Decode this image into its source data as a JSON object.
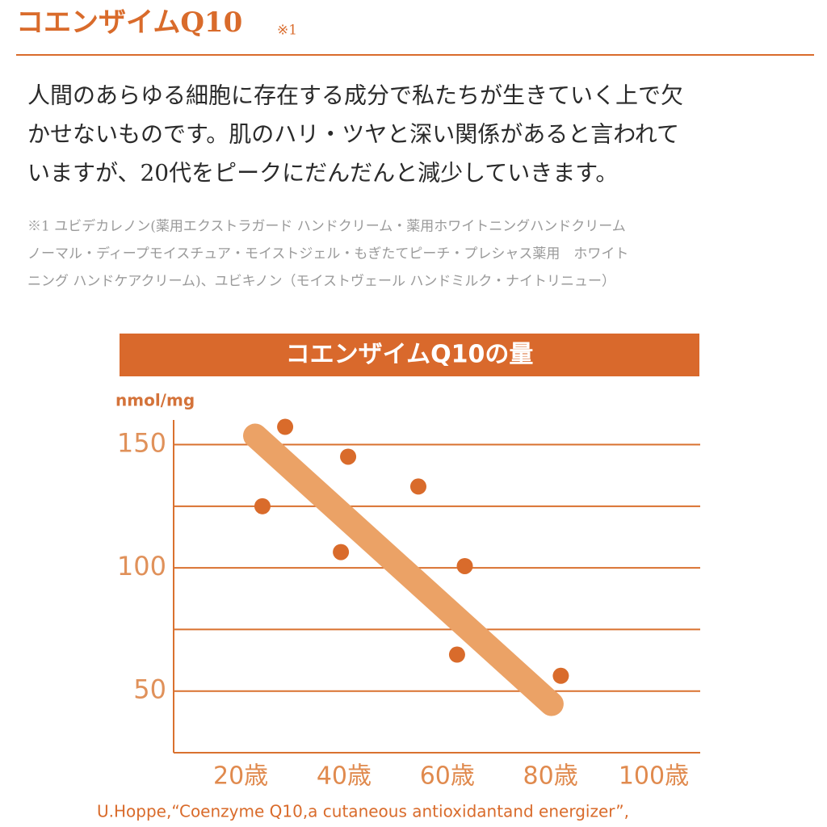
{
  "header": {
    "title": "コエンザイムQ10",
    "title_note": "※1"
  },
  "body": {
    "lines": [
      "人間のあらゆる細胞に存在する成分で私たちが生きていく上で欠",
      "かせないものです。肌のハリ・ツヤと深い関係があると言われて",
      "いますが、20代をピークにだんだんと減少していきます。"
    ]
  },
  "footnote": {
    "lines": [
      "※1 ユビデカレノン(薬用エクストラガード ハンドクリーム・薬用ホワイトニングハンドクリーム",
      "ノーマル・ディープモイスチュア・モイストジェル・もぎたてピーチ・プレシャス薬用　ホワイト",
      "ニング ハンドケアクリーム)、ユビキノン（モイストヴェール ハンドミルク・ナイトリニュー）"
    ]
  },
  "chart_data": {
    "type": "scatter",
    "title": "コエンザイムQ10の量",
    "y_label": "nmol/mg",
    "x": [
      24.2,
      28.6,
      39.4,
      40.8,
      54.4,
      63.4,
      61.9,
      82
    ],
    "values": [
      125,
      157.2,
      106.4,
      145.1,
      133,
      100.7,
      64.8,
      56.2
    ],
    "color": "#d96b2b",
    "trend": {
      "x": [
        22.8,
        80.2
      ],
      "values": [
        153.6,
        44.8
      ],
      "color": "#eba266"
    },
    "xlim": [
      7,
      109
    ],
    "ylim": [
      25,
      160
    ],
    "xticks": [
      {
        "value": 20,
        "label": "20歳"
      },
      {
        "value": 40,
        "label": "40歳"
      },
      {
        "value": 60,
        "label": "60歳"
      },
      {
        "value": 80,
        "label": "80歳"
      },
      {
        "value": 100,
        "label": "100歳"
      }
    ],
    "yticks": [
      50,
      100,
      150
    ],
    "grid_lines": [
      50,
      75,
      100,
      125,
      150
    ],
    "source": "U.Hoppe,“Coenzyme Q10,a cutaneous antioxidantand energizer”,"
  }
}
